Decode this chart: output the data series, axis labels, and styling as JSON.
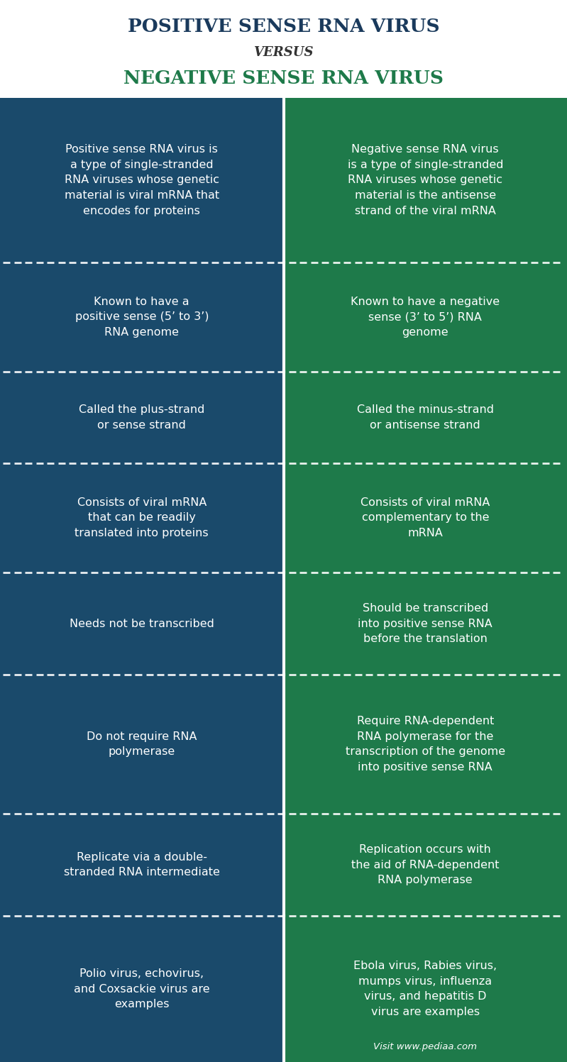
{
  "title_line1": "POSITIVE SENSE RNA VIRUS",
  "title_line2": "VERSUS",
  "title_line3": "NEGATIVE SENSE RNA VIRUS",
  "title1_color": "#1a3a5c",
  "title2_color": "#333333",
  "title3_color": "#1e7a4a",
  "bg_color": "#ffffff",
  "left_bg": "#1a4a6b",
  "right_bg": "#1e7a4a",
  "text_color": "#ffffff",
  "rows": [
    {
      "left": "Positive sense RNA virus is\na type of single-stranded\nRNA viruses whose genetic\nmaterial is viral mRNA that\nencodes for proteins",
      "right": "Negative sense RNA virus\nis a type of single-stranded\nRNA viruses whose genetic\nmaterial is the antisense\nstrand of the viral mRNA"
    },
    {
      "left": "Known to have a\npositive sense (5’ to 3’)\nRNA genome",
      "right": "Known to have a negative\nsense (3’ to 5’) RNA\ngenome"
    },
    {
      "left": "Called the plus-strand\nor sense strand",
      "right": "Called the minus-strand\nor antisense strand"
    },
    {
      "left": "Consists of viral mRNA\nthat can be readily\ntranslated into proteins",
      "right": "Consists of viral mRNA\ncomplementary to the\nmRNA"
    },
    {
      "left": "Needs not be transcribed",
      "right": "Should be transcribed\ninto positive sense RNA\nbefore the translation"
    },
    {
      "left": "Do not require RNA\npolymerase",
      "right": "Require RNA-dependent\nRNA polymerase for the\ntranscription of the genome\ninto positive sense RNA"
    },
    {
      "left": "Replicate via a double-\nstranded RNA intermediate",
      "right": "Replication occurs with\nthe aid of RNA-dependent\nRNA polymerase"
    },
    {
      "left": "Polio virus, echovirus,\nand Coxsackie virus are\nexamples",
      "right": "Ebola virus, Rabies virus,\nmumps virus, influenza\nvirus, and hepatitis D\nvirus are examples"
    }
  ],
  "watermark": "Visit www.pediaa.com",
  "row_heights_rel": [
    4.5,
    3.0,
    2.5,
    3.0,
    2.8,
    3.8,
    2.8,
    4.0
  ]
}
